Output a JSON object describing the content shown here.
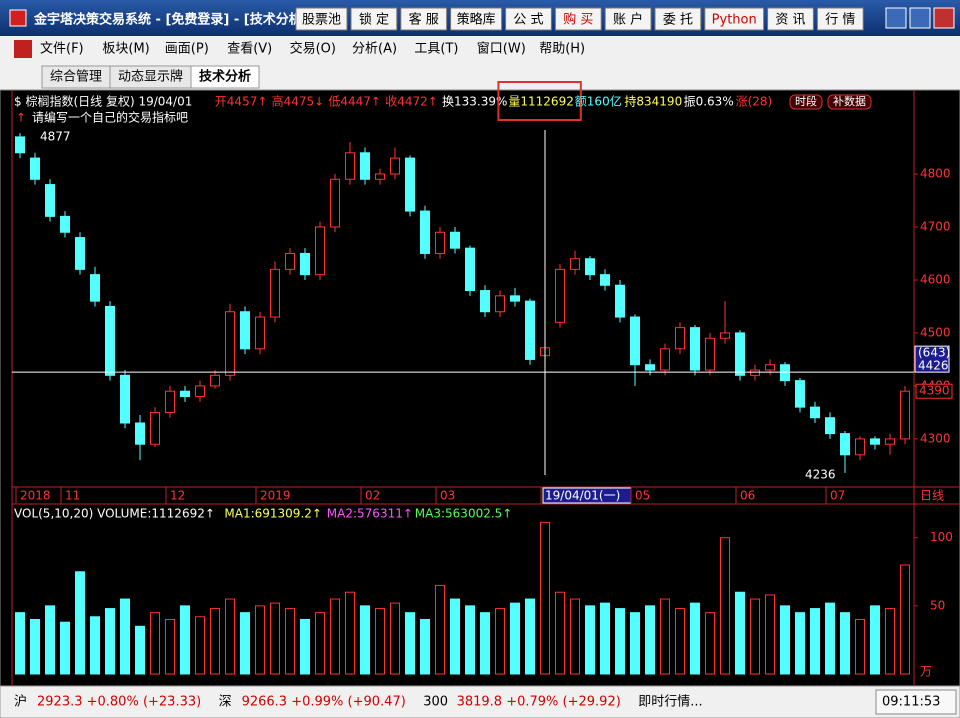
{
  "window": {
    "title": "金宇塔决策交易系统 - [免费登录] - [技术分析",
    "buttons": [
      {
        "text": "股票池"
      },
      {
        "text": "锁 定"
      },
      {
        "text": "客 服"
      },
      {
        "text": "策略库"
      },
      {
        "text": "公 式"
      },
      {
        "text": "购 买",
        "highlight": true
      },
      {
        "text": "账 户"
      },
      {
        "text": "委 托"
      },
      {
        "text": "Python",
        "highlight": true
      },
      {
        "text": "资 讯"
      },
      {
        "text": "行 情"
      }
    ]
  },
  "menu": [
    "文件(F)",
    "板块(M)",
    "画面(P)",
    "查看(V)",
    "交易(O)",
    "分析(A)",
    "工具(T)",
    "窗口(W)",
    "帮助(H)"
  ],
  "tabs": [
    {
      "text": "综合管理"
    },
    {
      "text": "动态显示牌"
    },
    {
      "text": "技术分析",
      "active": true
    }
  ],
  "info": [
    {
      "text": "$ 棕榈指数(日线 复权) 19/04/01",
      "color": "#ffffff"
    },
    {
      "text": "开4457↑",
      "color": "#ff3232"
    },
    {
      "text": "高4475↓",
      "color": "#ff3232"
    },
    {
      "text": "低4447↑",
      "color": "#ff3232"
    },
    {
      "text": "收4472↑",
      "color": "#ff3232"
    },
    {
      "text": "换133.39%",
      "color": "#ffffff"
    },
    {
      "text": "量1112692",
      "color": "#ffff54",
      "highlight": true
    },
    {
      "text": "额160亿",
      "color": "#54ffff"
    },
    {
      "text": "持834190",
      "color": "#ffff54"
    },
    {
      "text": "振0.63%",
      "color": "#ffffff"
    },
    {
      "text": "涨(28)",
      "color": "#ff3232"
    }
  ],
  "info_buttons": [
    "时段",
    "补数据"
  ],
  "prompt": "请编写一个自己的交易指标吧",
  "volume_header": [
    {
      "text": "VOL(5,10,20) VOLUME:1112692↑",
      "color": "#ffffff"
    },
    {
      "text": "MA1:691309.2↑",
      "color": "#ffff54"
    },
    {
      "text": "MA2:576311↑",
      "color": "#ff54ff"
    },
    {
      "text": "MA3:563002.5↑",
      "color": "#54ff54"
    }
  ],
  "status": [
    {
      "text": "沪",
      "color": "#000000"
    },
    {
      "text": "2923.3 +0.80% (+23.33)",
      "color": "#d00000"
    },
    {
      "text": "深",
      "color": "#000000"
    },
    {
      "text": "9266.3 +0.99% (+90.47)",
      "color": "#d00000"
    },
    {
      "text": "300",
      "color": "#000000"
    },
    {
      "text": "3819.8 +0.79% (+29.92)",
      "color": "#d00000"
    },
    {
      "text": "即时行情...",
      "color": "#000000"
    }
  ],
  "time": "09:11:53",
  "chart_data": [
    {
      "type": "candlestick",
      "up_color": "#ff3232",
      "down_color": "#54ffff",
      "period_label": "日线",
      "categories": [
        "2018",
        null,
        null,
        "11",
        null,
        null,
        null,
        null,
        null,
        null,
        "12",
        null,
        null,
        null,
        null,
        null,
        "2019",
        null,
        null,
        null,
        null,
        null,
        null,
        "02",
        null,
        null,
        null,
        null,
        "03",
        null,
        null,
        null,
        null,
        null,
        null,
        "19/04/01(一)",
        null,
        null,
        null,
        null,
        null,
        "05",
        null,
        null,
        null,
        null,
        null,
        null,
        "06",
        null,
        null,
        null,
        null,
        null,
        "07",
        null,
        null,
        null,
        null,
        null
      ],
      "open": [
        4870,
        4830,
        4780,
        4720,
        4680,
        4610,
        4550,
        4420,
        4330,
        4290,
        4350,
        4390,
        4380,
        4400,
        4420,
        4540,
        4470,
        4530,
        4620,
        4650,
        4610,
        4700,
        4790,
        4840,
        4790,
        4800,
        4830,
        4730,
        4650,
        4690,
        4660,
        4580,
        4540,
        4570,
        4560,
        4457,
        4520,
        4620,
        4640,
        4610,
        4590,
        4530,
        4440,
        4430,
        4470,
        4510,
        4430,
        4490,
        4500,
        4420,
        4430,
        4440,
        4410,
        4360,
        4340,
        4310,
        4270,
        4300,
        4290,
        4300
      ],
      "high": [
        4877,
        4840,
        4790,
        4730,
        4690,
        4625,
        4560,
        4430,
        4345,
        4360,
        4400,
        4400,
        4410,
        4430,
        4555,
        4550,
        4540,
        4635,
        4660,
        4660,
        4710,
        4800,
        4860,
        4850,
        4810,
        4850,
        4835,
        4740,
        4700,
        4700,
        4665,
        4590,
        4580,
        4585,
        4565,
        4475,
        4630,
        4655,
        4645,
        4620,
        4600,
        4535,
        4450,
        4480,
        4520,
        4515,
        4500,
        4560,
        4505,
        4440,
        4450,
        4445,
        4415,
        4370,
        4350,
        4315,
        4305,
        4305,
        4310,
        4400
      ],
      "low": [
        4830,
        4780,
        4710,
        4680,
        4610,
        4550,
        4410,
        4320,
        4260,
        4285,
        4340,
        4370,
        4370,
        4395,
        4410,
        4460,
        4460,
        4520,
        4610,
        4600,
        4600,
        4690,
        4780,
        4780,
        4780,
        4790,
        4720,
        4640,
        4640,
        4650,
        4570,
        4530,
        4530,
        4550,
        4440,
        4447,
        4510,
        4610,
        4600,
        4580,
        4520,
        4400,
        4420,
        4420,
        4460,
        4420,
        4420,
        4480,
        4410,
        4410,
        4420,
        4400,
        4350,
        4330,
        4300,
        4236,
        4260,
        4280,
        4270,
        4290
      ],
      "close": [
        4840,
        4790,
        4720,
        4690,
        4620,
        4560,
        4420,
        4330,
        4290,
        4350,
        4390,
        4380,
        4400,
        4420,
        4540,
        4470,
        4530,
        4620,
        4650,
        4610,
        4700,
        4790,
        4840,
        4790,
        4800,
        4830,
        4730,
        4650,
        4690,
        4660,
        4580,
        4540,
        4570,
        4560,
        4450,
        4472,
        4620,
        4640,
        4610,
        4590,
        4530,
        4440,
        4430,
        4470,
        4510,
        4430,
        4490,
        4500,
        4420,
        4430,
        4440,
        4410,
        4360,
        4340,
        4310,
        4270,
        4300,
        4290,
        4300,
        4390
      ],
      "ylim": [
        4213,
        4883
      ],
      "yticks": [
        4300,
        4400,
        4500,
        4600,
        4700,
        4800
      ],
      "crosshair": {
        "category": "19/04/01(一)",
        "value": 4426,
        "count_label": "(643)"
      }
    },
    {
      "type": "bar",
      "unit_label": "万",
      "up_color": "#ff3232",
      "down_color": "#54ffff",
      "values": [
        45,
        40,
        50,
        38,
        75,
        42,
        48,
        55,
        35,
        45,
        40,
        50,
        42,
        48,
        55,
        45,
        50,
        52,
        48,
        40,
        45,
        55,
        60,
        50,
        48,
        52,
        45,
        40,
        65,
        55,
        50,
        45,
        48,
        52,
        55,
        111.2692,
        60,
        55,
        50,
        52,
        48,
        45,
        50,
        55,
        48,
        52,
        45,
        100,
        60,
        55,
        58,
        50,
        45,
        48,
        52,
        45,
        40,
        50,
        48,
        80
      ],
      "ylim": [
        0,
        113
      ],
      "yticks": [
        50,
        100
      ]
    }
  ]
}
